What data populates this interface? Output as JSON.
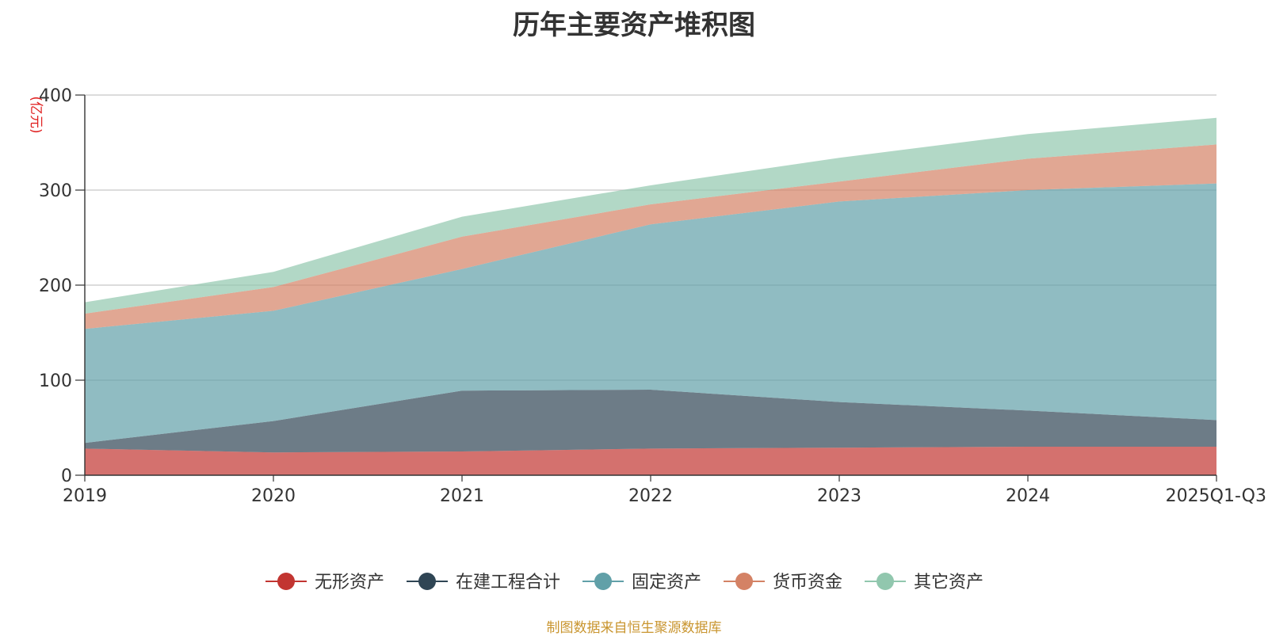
{
  "chart_data": {
    "type": "area",
    "stacked": true,
    "title": "历年主要资产堆积图",
    "unit_label": "(亿元)",
    "categories": [
      "2019",
      "2020",
      "2021",
      "2022",
      "2023",
      "2024",
      "2025Q1-Q3"
    ],
    "ylim": [
      0,
      400
    ],
    "yticks": [
      0,
      100,
      200,
      300,
      400
    ],
    "grid": true,
    "legend_position": "bottom",
    "series": [
      {
        "name": "无形资产",
        "color": "#c23531",
        "values": [
          28,
          24,
          25,
          28,
          29,
          30,
          30
        ]
      },
      {
        "name": "在建工程合计",
        "color": "#2f4554",
        "values": [
          6,
          33,
          64,
          62,
          48,
          38,
          28
        ]
      },
      {
        "name": "固定资产",
        "color": "#61a0a8",
        "values": [
          120,
          116,
          128,
          174,
          211,
          232,
          249
        ]
      },
      {
        "name": "货币资金",
        "color": "#d48265",
        "values": [
          16,
          25,
          34,
          21,
          21,
          33,
          41
        ]
      },
      {
        "name": "其它资产",
        "color": "#91c7ae",
        "values": [
          12,
          16,
          21,
          20,
          25,
          26,
          28
        ]
      }
    ]
  },
  "footer": {
    "source": "制图数据来自恒生聚源数据库"
  }
}
